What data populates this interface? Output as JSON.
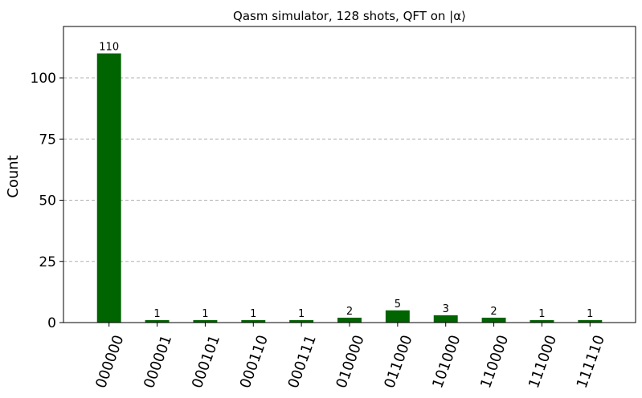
{
  "chart_data": {
    "type": "bar",
    "title": "Qasm simulator, 128 shots, QFT on |α⟩",
    "xlabel": "",
    "ylabel": "Count",
    "categories": [
      "000000",
      "000001",
      "000101",
      "000110",
      "000111",
      "010000",
      "011000",
      "101000",
      "110000",
      "111000",
      "111110"
    ],
    "values": [
      110,
      1,
      1,
      1,
      1,
      2,
      5,
      3,
      2,
      1,
      1
    ],
    "ylim": [
      0,
      121
    ],
    "yticks": [
      0,
      25,
      50,
      75,
      100
    ],
    "grid": "y-dashed",
    "bar_color": "#006400",
    "grid_color": "#b0b0b0"
  }
}
